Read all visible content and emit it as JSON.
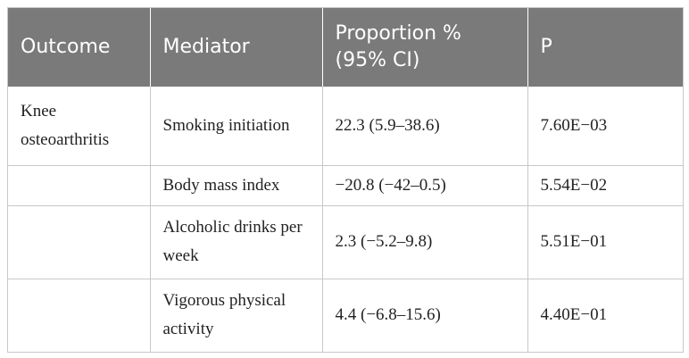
{
  "table": {
    "headers": {
      "outcome": "Outcome",
      "mediator": "Mediator",
      "proportion": "Proportion %\n(95% CI)",
      "p": "P"
    },
    "rows": [
      {
        "outcome": "Knee osteoarthritis",
        "mediator": "Smoking initiation",
        "proportion": "22.3 (5.9–38.6)",
        "p": "7.60E−03"
      },
      {
        "outcome": "",
        "mediator": "Body mass index",
        "proportion": "−20.8 (−42–0.5)",
        "p": "5.54E−02"
      },
      {
        "outcome": "",
        "mediator": "Alcoholic drinks per week",
        "proportion": "2.3 (−5.2–9.8)",
        "p": "5.51E−01"
      },
      {
        "outcome": "",
        "mediator": "Vigorous physical activity",
        "proportion": "4.4 (−6.8–15.6)",
        "p": "4.40E−01"
      }
    ]
  },
  "colors": {
    "header_bg": "#7a7a7a",
    "header_text": "#ffffff",
    "grid": "#c8c8c8"
  }
}
